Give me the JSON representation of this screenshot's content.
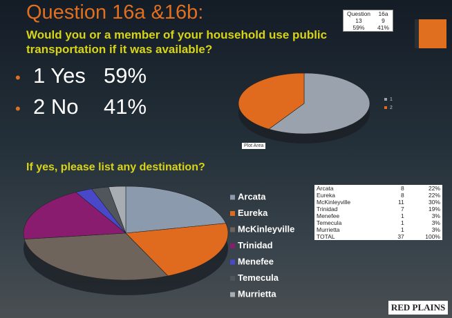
{
  "slide": {
    "title": "Question 16a &16b:",
    "question1": "Would you or a member of your household use public transportation if it was available?",
    "bullets": [
      {
        "label": "1 Yes",
        "pct": "59%"
      },
      {
        "label": "2 No",
        "pct": "41%"
      }
    ],
    "plot_area": "Plot Area",
    "question2": "If yes, please list any destination?",
    "logo": "RED PLAINS"
  },
  "table1": {
    "header": [
      "Question",
      "16a"
    ],
    "rows": [
      [
        "13",
        "9"
      ],
      [
        "59%",
        "41%"
      ]
    ]
  },
  "table2": {
    "rows": [
      [
        "Arcata",
        "8",
        "22%"
      ],
      [
        "Eureka",
        "8",
        "22%"
      ],
      [
        "McKinleyville",
        "11",
        "30%"
      ],
      [
        "Trinidad",
        "7",
        "19%"
      ],
      [
        "Menefee",
        "1",
        "3%"
      ],
      [
        "Temecula",
        "1",
        "3%"
      ],
      [
        "Murrietta",
        "1",
        "3%"
      ],
      [
        "TOTAL",
        "37",
        "100%"
      ]
    ]
  },
  "chart_data": [
    {
      "type": "pie",
      "categories": [
        "1",
        "2"
      ],
      "values": [
        59,
        41
      ],
      "colors": [
        "#9aa3ad",
        "#e06a1e"
      ]
    },
    {
      "type": "pie",
      "categories": [
        "Arcata",
        "Eureka",
        "McKinleyville",
        "Trinidad",
        "Menefee",
        "Temecula",
        "Murrietta"
      ],
      "values": [
        8,
        8,
        11,
        7,
        1,
        1,
        1
      ],
      "colors": [
        "#8c9aae",
        "#e06a1e",
        "#6e645c",
        "#8a1c70",
        "#4848c8",
        "#50565c",
        "#a8adb4"
      ]
    }
  ]
}
